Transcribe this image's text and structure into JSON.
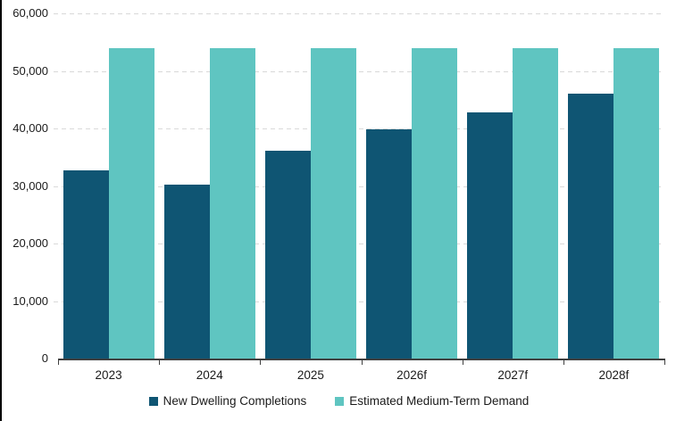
{
  "chart_data": {
    "type": "bar",
    "title": "",
    "categories": [
      "2023",
      "2024",
      "2025",
      "2026f",
      "2027f",
      "2028f"
    ],
    "series": [
      {
        "name": "New Dwelling Completions",
        "color": "#0f5573",
        "values": [
          32700,
          30300,
          36200,
          39800,
          42800,
          46000
        ]
      },
      {
        "name": "Estimated Medium-Term Demand",
        "color": "#5fc5c1",
        "values": [
          54000,
          54000,
          54000,
          54000,
          54000,
          54000
        ]
      }
    ],
    "ylim": [
      0,
      60000
    ],
    "y_tick_step": 10000,
    "y_tick_labels": [
      "0",
      "10,000",
      "20,000",
      "30,000",
      "40,000",
      "50,000",
      "60,000"
    ],
    "grid": "horizontal dashed",
    "grid_color": "#d9d9d9",
    "axis_color": "#404040",
    "legend_position": "bottom"
  }
}
